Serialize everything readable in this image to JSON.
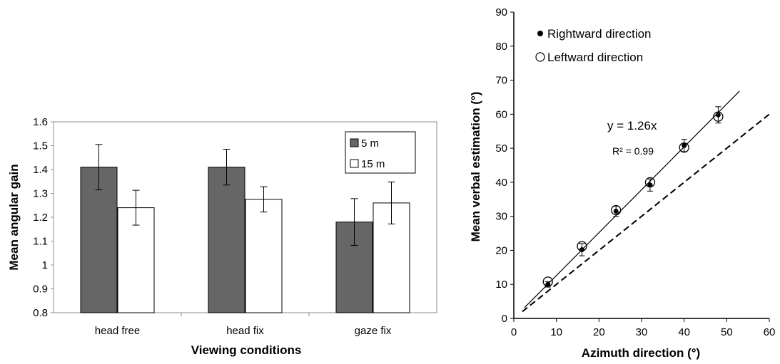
{
  "chart_data": [
    {
      "type": "bar",
      "title": "",
      "xlabel": "Viewing conditions",
      "ylabel": "Mean angular gain",
      "ylim": [
        0.8,
        1.6
      ],
      "yticks": [
        "0.8",
        "0.9",
        "1",
        "1.1",
        "1.2",
        "1.3",
        "1.4",
        "1.5",
        "1.6"
      ],
      "categories": [
        "head free",
        "head fix",
        "gaze fix"
      ],
      "series": [
        {
          "name": "5 m",
          "color": "#666666",
          "values": [
            1.41,
            1.41,
            1.18
          ],
          "error": [
            0.095,
            0.075,
            0.098
          ]
        },
        {
          "name": "15 m",
          "color": "#ffffff",
          "values": [
            1.24,
            1.275,
            1.26
          ],
          "error": [
            0.073,
            0.053,
            0.088
          ]
        }
      ],
      "grid": false,
      "legend_position": "top-right"
    },
    {
      "type": "scatter",
      "title": "",
      "xlabel": "Azimuth direction (°)",
      "ylabel": "Mean verbal estimation (°)",
      "xlim": [
        0,
        60
      ],
      "ylim": [
        0,
        90
      ],
      "xticks": [
        "0",
        "10",
        "20",
        "30",
        "40",
        "50",
        "60"
      ],
      "yticks": [
        "0",
        "10",
        "20",
        "30",
        "40",
        "50",
        "60",
        "70",
        "80",
        "90"
      ],
      "series": [
        {
          "name": "Rightward direction",
          "marker": "filled-circle",
          "x": [
            8,
            16,
            24,
            32,
            40,
            48
          ],
          "y": [
            10,
            20.2,
            31.5,
            39.2,
            50.8,
            59.8
          ],
          "error": [
            0.8,
            1.8,
            1.5,
            1.8,
            1.8,
            2.4
          ]
        },
        {
          "name": "Leftward direction",
          "marker": "open-circle",
          "x": [
            8,
            16,
            24,
            32,
            40,
            48
          ],
          "y": [
            10.8,
            21.2,
            31.8,
            40.0,
            50.2,
            59.3
          ],
          "error": [
            0.8,
            1.8,
            1.5,
            1.8,
            1.8,
            2.4
          ]
        }
      ],
      "fit_line": {
        "slope": 1.26,
        "x_range": [
          2.5,
          53
        ],
        "style": "solid"
      },
      "identity_line": {
        "slope": 1.0,
        "x_range": [
          2,
          60
        ],
        "style": "dashed"
      },
      "annotations": [
        "y = 1.26x",
        "R² = 0.99"
      ],
      "grid": false,
      "legend_position": "top-left"
    }
  ]
}
